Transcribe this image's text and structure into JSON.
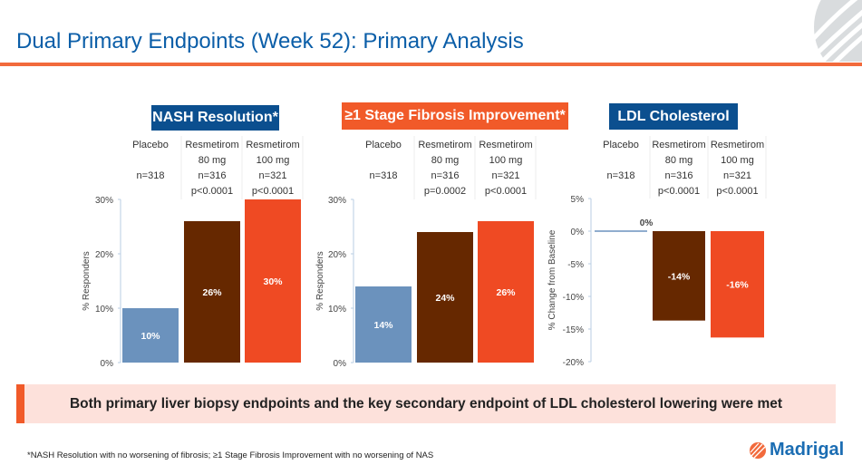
{
  "title": "Dual Primary Endpoints (Week 52): Primary Analysis",
  "colors": {
    "accent": "#f26a3c",
    "title": "#0b5ea8",
    "header_blue": "#0b4f8f",
    "header_orange": "#f15a29",
    "placebo": "#6b92bd",
    "dose80": "#662800",
    "dose100": "#ef4a23"
  },
  "chart_data": [
    {
      "type": "bar",
      "title": "NASH Resolution*",
      "title_color": "#0b4f8f",
      "ylabel": "% Responders",
      "ylim": [
        0,
        30
      ],
      "yticks": [
        "0%",
        "10%",
        "20%",
        "30%"
      ],
      "ytick_values": [
        0,
        10,
        20,
        30
      ],
      "categories": [
        {
          "lines": [
            "Placebo",
            "",
            "n=318",
            ""
          ]
        },
        {
          "lines": [
            "Resmetirom",
            "80 mg",
            "n=316",
            "p<0.0001"
          ]
        },
        {
          "lines": [
            "Resmetirom",
            "100 mg",
            "n=321",
            "p<0.0001"
          ]
        }
      ],
      "values": [
        10,
        26,
        30
      ],
      "labels": [
        "10%",
        "26%",
        "30%"
      ]
    },
    {
      "type": "bar",
      "title": "≥1 Stage Fibrosis Improvement*",
      "title_color": "#f15a29",
      "ylabel": "% Responders",
      "ylim": [
        0,
        30
      ],
      "yticks": [
        "0%",
        "10%",
        "20%",
        "30%"
      ],
      "ytick_values": [
        0,
        10,
        20,
        30
      ],
      "categories": [
        {
          "lines": [
            "Placebo",
            "",
            "n=318",
            ""
          ]
        },
        {
          "lines": [
            "Resmetirom",
            "80 mg",
            "n=316",
            "p=0.0002"
          ]
        },
        {
          "lines": [
            "Resmetirom",
            "100 mg",
            "n=321",
            "p<0.0001"
          ]
        }
      ],
      "values": [
        14,
        24,
        26
      ],
      "labels": [
        "14%",
        "24%",
        "26%"
      ]
    },
    {
      "type": "bar",
      "title": "LDL Cholesterol",
      "title_color": "#0b4f8f",
      "ylabel": "% Change from Baseline",
      "ylim": [
        -20,
        5
      ],
      "yticks": [
        "-20%",
        "-15%",
        "-10%",
        "-5%",
        "0%",
        "5%"
      ],
      "ytick_values": [
        -20,
        -15,
        -10,
        -5,
        0,
        5
      ],
      "categories": [
        {
          "lines": [
            "Placebo",
            "",
            "n=318",
            ""
          ]
        },
        {
          "lines": [
            "Resmetirom",
            "80 mg",
            "n=316",
            "p<0.0001"
          ]
        },
        {
          "lines": [
            "Resmetirom",
            "100 mg",
            "n=321",
            "p<0.0001"
          ]
        }
      ],
      "values": [
        0,
        -13.7,
        -16.3
      ],
      "labels": [
        "0%",
        "-14%",
        "-16%"
      ]
    }
  ],
  "banner": "Both primary liver biopsy endpoints and the key secondary endpoint of LDL cholesterol lowering were met",
  "footnote": "*NASH Resolution with no worsening of fibrosis; ≥1 Stage Fibrosis Improvement with no worsening of NAS",
  "logo": "Madrigal"
}
